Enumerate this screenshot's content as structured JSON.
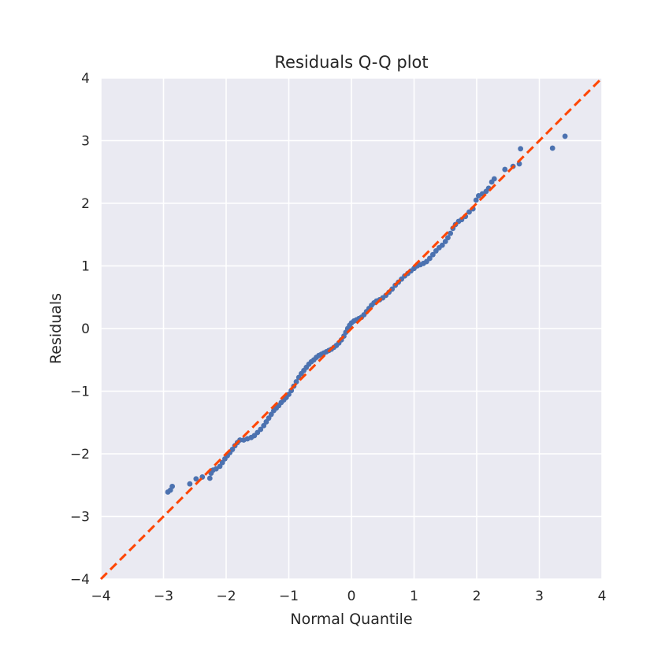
{
  "chart_data": {
    "type": "scatter",
    "title": "Residuals Q-Q plot",
    "xlabel": "Normal Quantile",
    "ylabel": "Residuals",
    "xlim": [
      -4,
      4
    ],
    "ylim": [
      -4,
      4
    ],
    "xticks": [
      "−4",
      "−3",
      "−2",
      "−1",
      "0",
      "1",
      "2",
      "3",
      "4"
    ],
    "yticks": [
      "−4",
      "−3",
      "−2",
      "−1",
      "0",
      "1",
      "2",
      "3",
      "4"
    ],
    "grid": true,
    "reference_line": {
      "slope": 1,
      "intercept": 0,
      "style": "dashed"
    },
    "colors": {
      "points": "#4c72b0",
      "line": "#ff4500",
      "background": "#eaeaf2",
      "grid": "#ffffff"
    },
    "points": [
      [
        -2.93,
        -2.61
      ],
      [
        -2.89,
        -2.58
      ],
      [
        -2.86,
        -2.52
      ],
      [
        -2.58,
        -2.48
      ],
      [
        -2.48,
        -2.4
      ],
      [
        -2.38,
        -2.37
      ],
      [
        -2.26,
        -2.39
      ],
      [
        -2.24,
        -2.31
      ],
      [
        -2.21,
        -2.26
      ],
      [
        -2.16,
        -2.24
      ],
      [
        -2.1,
        -2.2
      ],
      [
        -2.06,
        -2.14
      ],
      [
        -2.02,
        -2.08
      ],
      [
        -1.98,
        -2.03
      ],
      [
        -1.94,
        -1.98
      ],
      [
        -1.9,
        -1.93
      ],
      [
        -1.86,
        -1.87
      ],
      [
        -1.82,
        -1.82
      ],
      [
        -1.78,
        -1.78
      ],
      [
        -1.72,
        -1.78
      ],
      [
        -1.66,
        -1.76
      ],
      [
        -1.6,
        -1.74
      ],
      [
        -1.55,
        -1.71
      ],
      [
        -1.5,
        -1.66
      ],
      [
        -1.45,
        -1.61
      ],
      [
        -1.4,
        -1.55
      ],
      [
        -1.36,
        -1.49
      ],
      [
        -1.32,
        -1.43
      ],
      [
        -1.28,
        -1.37
      ],
      [
        -1.24,
        -1.31
      ],
      [
        -1.2,
        -1.27
      ],
      [
        -1.16,
        -1.23
      ],
      [
        -1.12,
        -1.18
      ],
      [
        -1.08,
        -1.14
      ],
      [
        -1.04,
        -1.1
      ],
      [
        -1.0,
        -1.05
      ],
      [
        -0.96,
        -0.99
      ],
      [
        -0.92,
        -0.92
      ],
      [
        -0.88,
        -0.85
      ],
      [
        -0.84,
        -0.78
      ],
      [
        -0.8,
        -0.72
      ],
      [
        -0.76,
        -0.67
      ],
      [
        -0.72,
        -0.62
      ],
      [
        -0.68,
        -0.57
      ],
      [
        -0.64,
        -0.53
      ],
      [
        -0.6,
        -0.5
      ],
      [
        -0.56,
        -0.46
      ],
      [
        -0.52,
        -0.43
      ],
      [
        -0.48,
        -0.41
      ],
      [
        -0.44,
        -0.39
      ],
      [
        -0.4,
        -0.37
      ],
      [
        -0.36,
        -0.35
      ],
      [
        -0.32,
        -0.33
      ],
      [
        -0.28,
        -0.3
      ],
      [
        -0.24,
        -0.27
      ],
      [
        -0.2,
        -0.23
      ],
      [
        -0.16,
        -0.18
      ],
      [
        -0.12,
        -0.12
      ],
      [
        -0.09,
        -0.06
      ],
      [
        -0.06,
        0.0
      ],
      [
        -0.03,
        0.05
      ],
      [
        0.0,
        0.09
      ],
      [
        0.04,
        0.12
      ],
      [
        0.08,
        0.14
      ],
      [
        0.12,
        0.16
      ],
      [
        0.16,
        0.18
      ],
      [
        0.2,
        0.22
      ],
      [
        0.24,
        0.27
      ],
      [
        0.28,
        0.32
      ],
      [
        0.32,
        0.37
      ],
      [
        0.36,
        0.41
      ],
      [
        0.4,
        0.44
      ],
      [
        0.45,
        0.46
      ],
      [
        0.5,
        0.49
      ],
      [
        0.55,
        0.53
      ],
      [
        0.6,
        0.58
      ],
      [
        0.65,
        0.63
      ],
      [
        0.7,
        0.69
      ],
      [
        0.75,
        0.74
      ],
      [
        0.8,
        0.79
      ],
      [
        0.85,
        0.84
      ],
      [
        0.9,
        0.88
      ],
      [
        0.95,
        0.92
      ],
      [
        1.0,
        0.96
      ],
      [
        1.05,
        1.0
      ],
      [
        1.1,
        1.02
      ],
      [
        1.15,
        1.04
      ],
      [
        1.2,
        1.07
      ],
      [
        1.25,
        1.12
      ],
      [
        1.3,
        1.18
      ],
      [
        1.35,
        1.24
      ],
      [
        1.4,
        1.29
      ],
      [
        1.45,
        1.33
      ],
      [
        1.5,
        1.39
      ],
      [
        1.54,
        1.45
      ],
      [
        1.58,
        1.52
      ],
      [
        1.62,
        1.6
      ],
      [
        1.66,
        1.66
      ],
      [
        1.71,
        1.71
      ],
      [
        1.76,
        1.74
      ],
      [
        1.82,
        1.79
      ],
      [
        1.88,
        1.86
      ],
      [
        1.94,
        1.91
      ],
      [
        1.99,
        2.05
      ],
      [
        2.03,
        2.12
      ],
      [
        2.09,
        2.15
      ],
      [
        2.15,
        2.19
      ],
      [
        2.19,
        2.24
      ],
      [
        2.24,
        2.34
      ],
      [
        2.28,
        2.39
      ],
      [
        2.45,
        2.54
      ],
      [
        2.58,
        2.59
      ],
      [
        2.68,
        2.63
      ],
      [
        2.7,
        2.87
      ],
      [
        3.21,
        2.88
      ],
      [
        3.41,
        3.07
      ]
    ]
  }
}
